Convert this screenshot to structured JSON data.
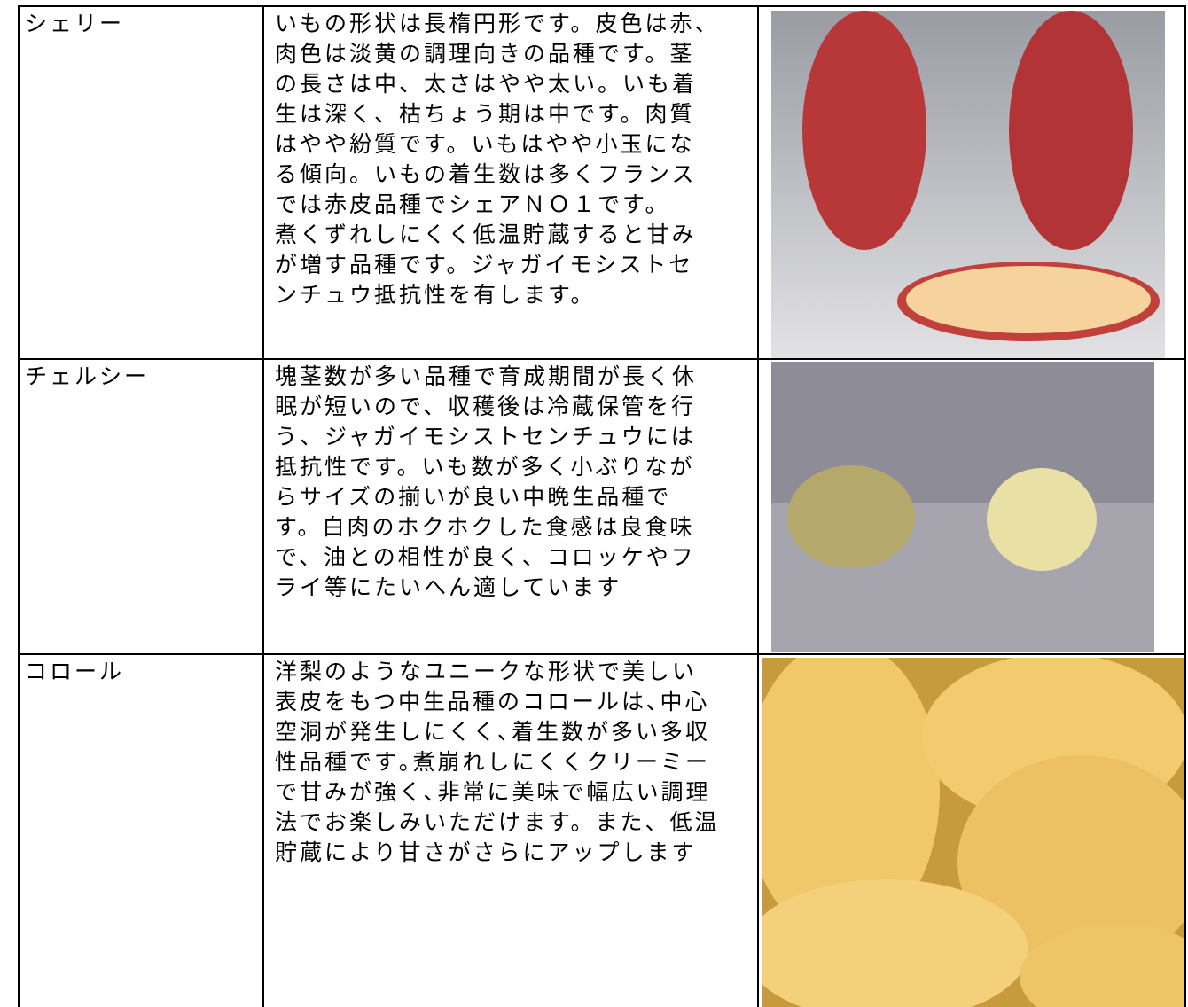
{
  "table": {
    "rows": [
      {
        "name": "シェリー",
        "lines": [
          "いもの形状は長楕円形です。皮色は赤、",
          "肉色は淡黄の調理向きの品種です。茎",
          "の長さは中、太さはやや太い。いも着",
          "生は深く、枯ちょう期は中です。肉質",
          "はやや紛質です。いもはやや小玉にな",
          "る傾向。いもの着生数は多くフランス",
          "では赤皮品種でシェアＮＯ１です。",
          "煮くずれしにくく低温貯蔵すると甘み",
          "が増す品種です。ジャガイモシストセ",
          "ンチュウ抵抗性を有します。"
        ]
      },
      {
        "name": "チェルシー",
        "lines": [
          "塊茎数が多い品種で育成期間が長く休",
          "眠が短いので、収穫後は冷蔵保管を行",
          "う、ジャガイモシストセンチュウには",
          "抵抗性です。いも数が多く小ぶりなが",
          "らサイズの揃いが良い中晩生品種で",
          "す。白肉のホクホクした食感は良食味",
          "で、油との相性が良く、コロッケやフ",
          "ライ等にたいへん適しています"
        ]
      },
      {
        "name": "コロール",
        "lines": [
          "洋梨のようなユニークな形状で美しい",
          "表皮をもつ中生品種のコロールは､中心",
          "空洞が発生しにくく､着生数が多い多収",
          "性品種です｡煮崩れしにくくクリーミー",
          "で甘みが強く､非常に美味で幅広い調理",
          "法でお楽しみいただけます。また、低温",
          "貯蔵により甘さがさらにアップします"
        ]
      }
    ]
  }
}
